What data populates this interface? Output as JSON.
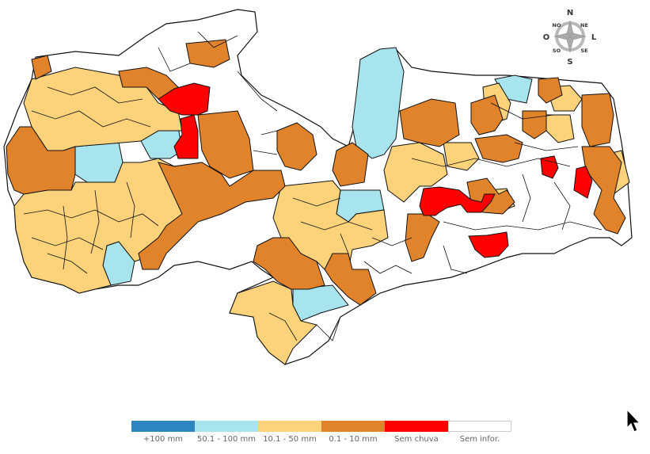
{
  "compass": {
    "n": "N",
    "s": "S",
    "e": "L",
    "w": "O",
    "ne": "NE",
    "nw": "NO",
    "se": "SE",
    "sw": "SO"
  },
  "legend": [
    {
      "label": "+100 mm",
      "color": "#2e86c1"
    },
    {
      "label": "50.1 - 100 mm",
      "color": "#a8e4ee"
    },
    {
      "label": "10.1 - 50 mm",
      "color": "#fcd27a"
    },
    {
      "label": "0.1 - 10 mm",
      "color": "#e0832b"
    },
    {
      "label": "Sem chuva",
      "color": "#ff0000"
    },
    {
      "label": "Sem infor.",
      "color": "#ffffff"
    }
  ],
  "map": {
    "border_color": "#111111"
  }
}
